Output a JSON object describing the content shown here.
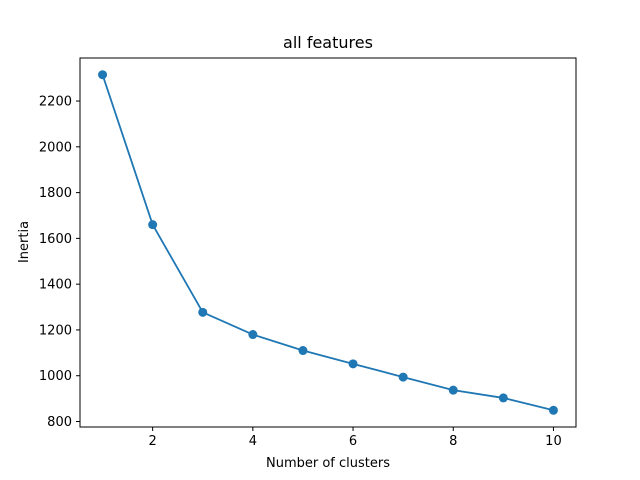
{
  "chart_data": {
    "type": "line",
    "title": "all features",
    "xlabel": "Number of clusters",
    "ylabel": "Inertia",
    "x": [
      1,
      2,
      3,
      4,
      5,
      6,
      7,
      8,
      9,
      10
    ],
    "series": [
      {
        "values": [
          2315,
          1660,
          1277,
          1180,
          1110,
          1052,
          994,
          937,
          903,
          849
        ],
        "color": "#1f77b4",
        "marker": "circle"
      }
    ],
    "xlim": [
      0.55,
      10.45
    ],
    "ylim": [
      776,
      2388
    ],
    "xticks": [
      2,
      4,
      6,
      8,
      10
    ],
    "yticks": [
      800,
      1000,
      1200,
      1400,
      1600,
      1800,
      2000,
      2200
    ],
    "grid": false,
    "legend": "none"
  }
}
